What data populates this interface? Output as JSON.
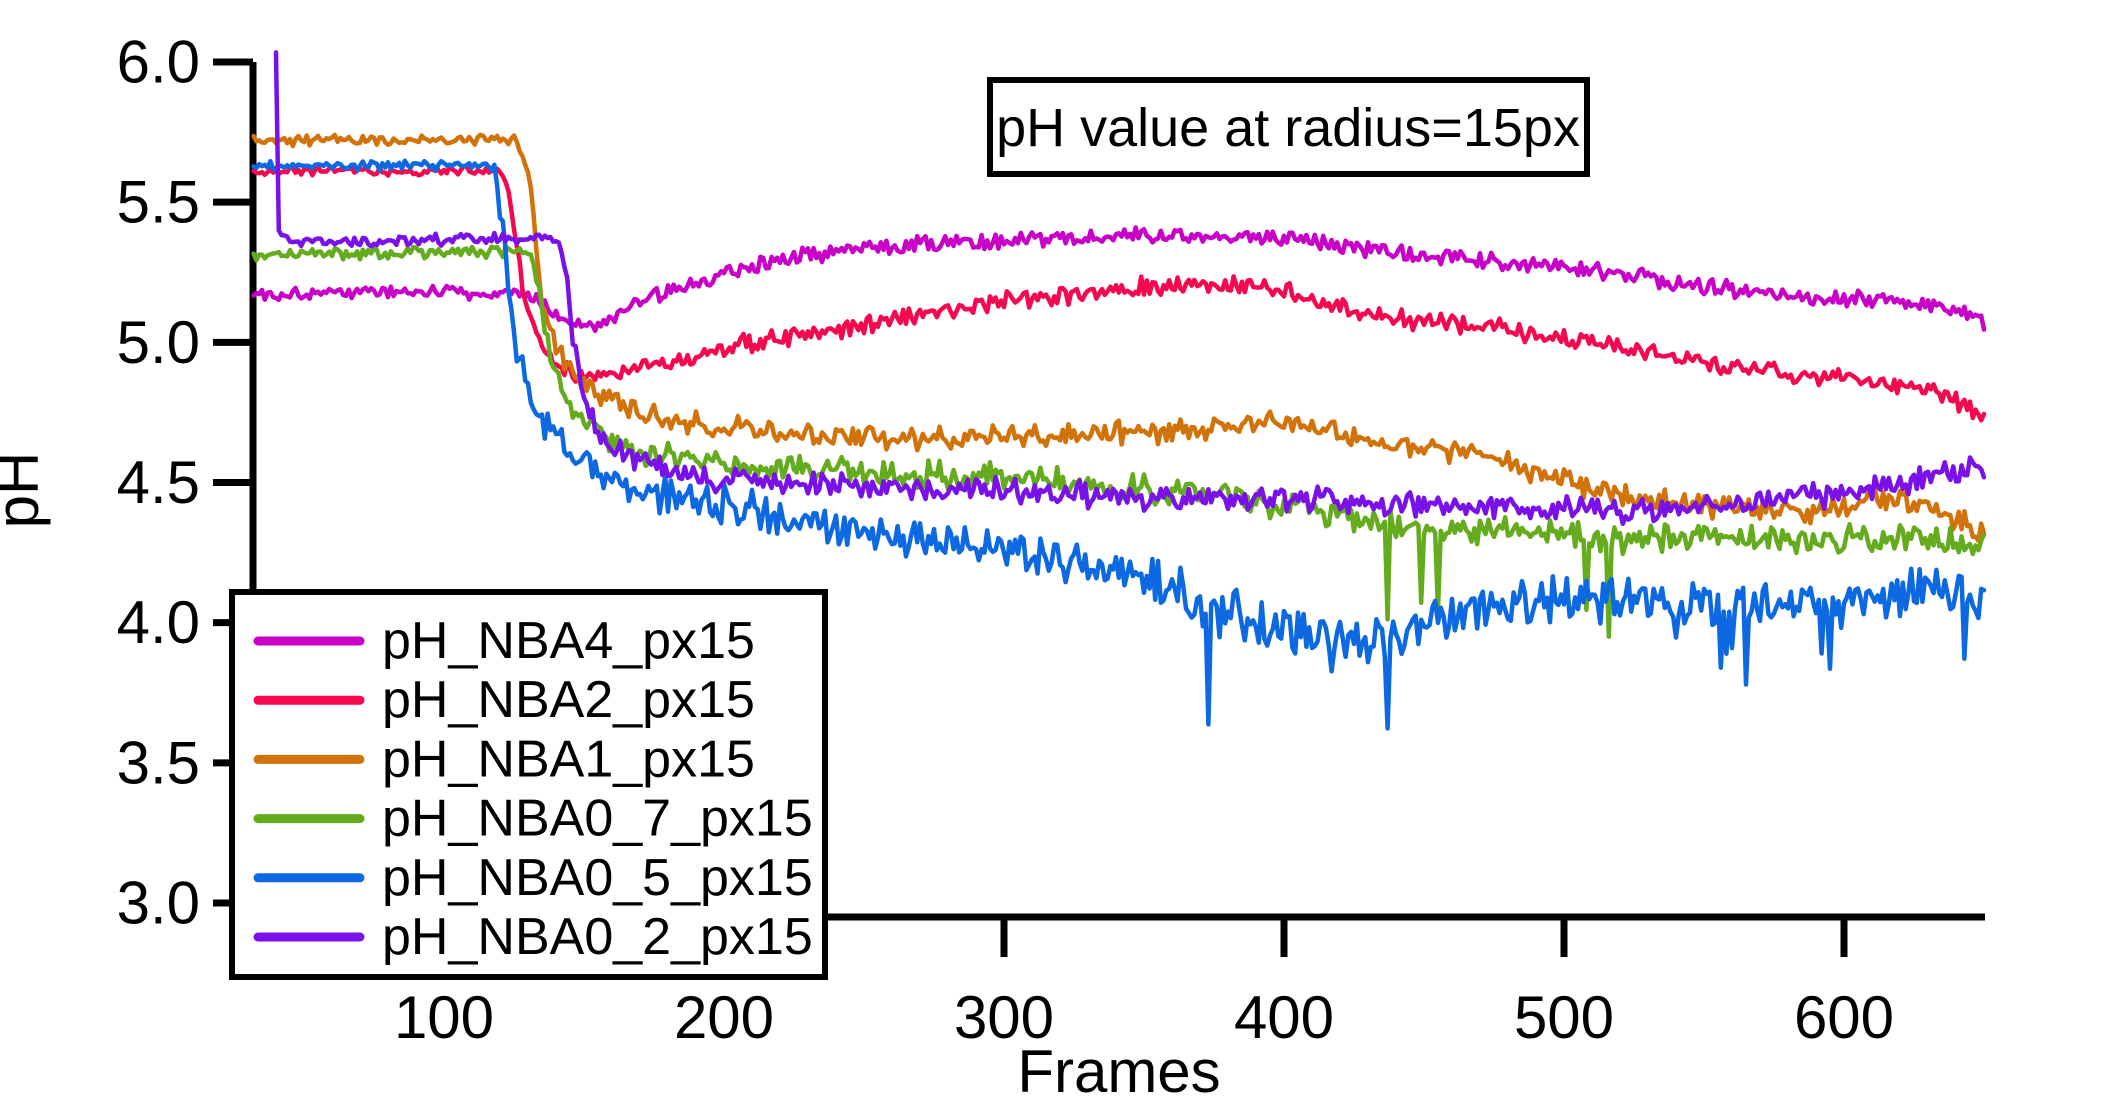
{
  "figure": {
    "annotation": "pH value at radius=15px",
    "xlabel": "Frames",
    "ylabel": "pH"
  },
  "chart_data": {
    "type": "line",
    "title": "pH value at radius=15px",
    "xlabel": "Frames",
    "ylabel": "pH",
    "xlim": [
      32,
      650
    ],
    "ylim": [
      3.0,
      6.0
    ],
    "x_ticks": [
      100,
      200,
      300,
      400,
      500,
      600
    ],
    "y_ticks": [
      6.0,
      5.5,
      5.0,
      4.5,
      4.0,
      3.5,
      3.0
    ],
    "y_tick_labels": [
      "6.0",
      "5.5",
      "5.0",
      "4.5",
      "4.0",
      "3.5",
      "3.0"
    ],
    "grid": false,
    "legend_position": "inside-bottom-left",
    "series": [
      {
        "name": "pH_NBA4_px15",
        "color": "#C800C8",
        "seed": 101,
        "noise_segments": [
          [
            32,
            135,
            0.028
          ],
          [
            135,
            650,
            0.038
          ]
        ],
        "points": [
          [
            32,
            5.17
          ],
          [
            60,
            5.18
          ],
          [
            100,
            5.18
          ],
          [
            130,
            5.17
          ],
          [
            140,
            5.1
          ],
          [
            152,
            5.05
          ],
          [
            165,
            5.12
          ],
          [
            180,
            5.18
          ],
          [
            200,
            5.25
          ],
          [
            220,
            5.3
          ],
          [
            250,
            5.34
          ],
          [
            280,
            5.36
          ],
          [
            320,
            5.37
          ],
          [
            360,
            5.38
          ],
          [
            400,
            5.37
          ],
          [
            430,
            5.33
          ],
          [
            460,
            5.3
          ],
          [
            490,
            5.28
          ],
          [
            520,
            5.24
          ],
          [
            550,
            5.2
          ],
          [
            580,
            5.17
          ],
          [
            610,
            5.15
          ],
          [
            635,
            5.12
          ],
          [
            650,
            5.08
          ]
        ]
      },
      {
        "name": "pH_NBA2_px15",
        "color": "#F5084D",
        "seed": 202,
        "noise_segments": [
          [
            32,
            122,
            0.02
          ],
          [
            122,
            650,
            0.04
          ]
        ],
        "points": [
          [
            32,
            5.61
          ],
          [
            80,
            5.61
          ],
          [
            120,
            5.61
          ],
          [
            123,
            5.55
          ],
          [
            128,
            5.2
          ],
          [
            133,
            5.0
          ],
          [
            140,
            4.92
          ],
          [
            150,
            4.87
          ],
          [
            160,
            4.9
          ],
          [
            175,
            4.92
          ],
          [
            190,
            4.95
          ],
          [
            210,
            5.0
          ],
          [
            230,
            5.03
          ],
          [
            250,
            5.06
          ],
          [
            270,
            5.1
          ],
          [
            290,
            5.13
          ],
          [
            310,
            5.16
          ],
          [
            330,
            5.18
          ],
          [
            355,
            5.2
          ],
          [
            380,
            5.21
          ],
          [
            400,
            5.18
          ],
          [
            420,
            5.12
          ],
          [
            445,
            5.08
          ],
          [
            470,
            5.06
          ],
          [
            495,
            5.02
          ],
          [
            520,
            4.98
          ],
          [
            545,
            4.94
          ],
          [
            570,
            4.9
          ],
          [
            595,
            4.88
          ],
          [
            615,
            4.85
          ],
          [
            630,
            4.83
          ],
          [
            643,
            4.78
          ],
          [
            650,
            4.74
          ]
        ]
      },
      {
        "name": "pH_NBA1_px15",
        "color": "#D2730A",
        "seed": 303,
        "noise_segments": [
          [
            32,
            128,
            0.022
          ],
          [
            128,
            650,
            0.05
          ]
        ],
        "points": [
          [
            32,
            5.72
          ],
          [
            80,
            5.72
          ],
          [
            126,
            5.72
          ],
          [
            130,
            5.6
          ],
          [
            135,
            5.15
          ],
          [
            140,
            4.98
          ],
          [
            148,
            4.88
          ],
          [
            158,
            4.8
          ],
          [
            170,
            4.75
          ],
          [
            185,
            4.72
          ],
          [
            200,
            4.7
          ],
          [
            220,
            4.67
          ],
          [
            240,
            4.66
          ],
          [
            260,
            4.65
          ],
          [
            280,
            4.66
          ],
          [
            300,
            4.66
          ],
          [
            320,
            4.67
          ],
          [
            340,
            4.68
          ],
          [
            360,
            4.68
          ],
          [
            380,
            4.7
          ],
          [
            395,
            4.72
          ],
          [
            410,
            4.7
          ],
          [
            425,
            4.66
          ],
          [
            440,
            4.63
          ],
          [
            455,
            4.62
          ],
          [
            470,
            4.6
          ],
          [
            485,
            4.55
          ],
          [
            500,
            4.5
          ],
          [
            515,
            4.47
          ],
          [
            530,
            4.44
          ],
          [
            545,
            4.42
          ],
          [
            560,
            4.41
          ],
          [
            575,
            4.4
          ],
          [
            590,
            4.4
          ],
          [
            605,
            4.43
          ],
          [
            618,
            4.45
          ],
          [
            630,
            4.42
          ],
          [
            640,
            4.37
          ],
          [
            650,
            4.33
          ]
        ]
      },
      {
        "name": "pH_NBA0_7_px15",
        "color": "#64AC1E",
        "seed": 404,
        "noise_segments": [
          [
            32,
            133,
            0.025
          ],
          [
            133,
            650,
            0.06
          ]
        ],
        "spikes": [
          {
            "from": 420,
            "to": 520,
            "p": 0.04,
            "max": 0.38
          }
        ],
        "points": [
          [
            32,
            5.31
          ],
          [
            80,
            5.32
          ],
          [
            131,
            5.32
          ],
          [
            136,
            5.05
          ],
          [
            142,
            4.82
          ],
          [
            150,
            4.72
          ],
          [
            160,
            4.65
          ],
          [
            172,
            4.6
          ],
          [
            185,
            4.58
          ],
          [
            200,
            4.56
          ],
          [
            220,
            4.55
          ],
          [
            240,
            4.54
          ],
          [
            260,
            4.53
          ],
          [
            280,
            4.52
          ],
          [
            300,
            4.52
          ],
          [
            320,
            4.5
          ],
          [
            340,
            4.48
          ],
          [
            360,
            4.47
          ],
          [
            380,
            4.45
          ],
          [
            400,
            4.42
          ],
          [
            420,
            4.38
          ],
          [
            440,
            4.35
          ],
          [
            460,
            4.33
          ],
          [
            480,
            4.32
          ],
          [
            500,
            4.31
          ],
          [
            520,
            4.3
          ],
          [
            540,
            4.3
          ],
          [
            560,
            4.3
          ],
          [
            580,
            4.29
          ],
          [
            600,
            4.3
          ],
          [
            620,
            4.31
          ],
          [
            635,
            4.3
          ],
          [
            650,
            4.27
          ]
        ]
      },
      {
        "name": "pH_NBA0_5_px15",
        "color": "#0C69E1",
        "seed": 505,
        "noise_segments": [
          [
            32,
            119,
            0.022
          ],
          [
            119,
            350,
            0.085
          ],
          [
            350,
            470,
            0.115
          ],
          [
            470,
            650,
            0.1
          ]
        ],
        "spikes": [
          {
            "from": 355,
            "to": 470,
            "p": 0.06,
            "max": 0.45
          },
          {
            "from": 470,
            "to": 650,
            "p": 0.03,
            "max": 0.3
          }
        ],
        "points": [
          [
            32,
            5.63
          ],
          [
            80,
            5.63
          ],
          [
            118,
            5.63
          ],
          [
            121,
            5.4
          ],
          [
            125,
            5.05
          ],
          [
            130,
            4.85
          ],
          [
            137,
            4.7
          ],
          [
            145,
            4.6
          ],
          [
            155,
            4.53
          ],
          [
            168,
            4.48
          ],
          [
            182,
            4.45
          ],
          [
            200,
            4.42
          ],
          [
            220,
            4.38
          ],
          [
            240,
            4.33
          ],
          [
            260,
            4.3
          ],
          [
            280,
            4.28
          ],
          [
            300,
            4.26
          ],
          [
            320,
            4.22
          ],
          [
            340,
            4.18
          ],
          [
            360,
            4.12
          ],
          [
            375,
            4.05
          ],
          [
            390,
            3.98
          ],
          [
            405,
            3.95
          ],
          [
            420,
            3.92
          ],
          [
            435,
            3.95
          ],
          [
            450,
            4.0
          ],
          [
            465,
            4.03
          ],
          [
            480,
            4.06
          ],
          [
            500,
            4.08
          ],
          [
            520,
            4.08
          ],
          [
            540,
            4.06
          ],
          [
            560,
            4.05
          ],
          [
            580,
            4.06
          ],
          [
            600,
            4.07
          ],
          [
            620,
            4.1
          ],
          [
            640,
            4.12
          ],
          [
            650,
            4.1
          ]
        ]
      },
      {
        "name": "pH_NBA0_2_px15",
        "color": "#7A11E9",
        "seed": 606,
        "noise_segments": [
          [
            40,
            142,
            0.025
          ],
          [
            142,
            650,
            0.055
          ]
        ],
        "points": [
          [
            40,
            6.02
          ],
          [
            41,
            5.4
          ],
          [
            45,
            5.36
          ],
          [
            80,
            5.36
          ],
          [
            120,
            5.37
          ],
          [
            140,
            5.37
          ],
          [
            143,
            5.3
          ],
          [
            146,
            5.0
          ],
          [
            150,
            4.8
          ],
          [
            156,
            4.68
          ],
          [
            164,
            4.6
          ],
          [
            175,
            4.55
          ],
          [
            190,
            4.52
          ],
          [
            210,
            4.5
          ],
          [
            230,
            4.5
          ],
          [
            250,
            4.49
          ],
          [
            270,
            4.48
          ],
          [
            290,
            4.47
          ],
          [
            310,
            4.46
          ],
          [
            330,
            4.46
          ],
          [
            350,
            4.45
          ],
          [
            370,
            4.45
          ],
          [
            390,
            4.44
          ],
          [
            410,
            4.44
          ],
          [
            430,
            4.43
          ],
          [
            450,
            4.42
          ],
          [
            470,
            4.42
          ],
          [
            490,
            4.41
          ],
          [
            510,
            4.4
          ],
          [
            530,
            4.4
          ],
          [
            550,
            4.41
          ],
          [
            570,
            4.43
          ],
          [
            590,
            4.45
          ],
          [
            610,
            4.48
          ],
          [
            630,
            4.52
          ],
          [
            645,
            4.56
          ],
          [
            650,
            4.55
          ]
        ]
      }
    ]
  }
}
